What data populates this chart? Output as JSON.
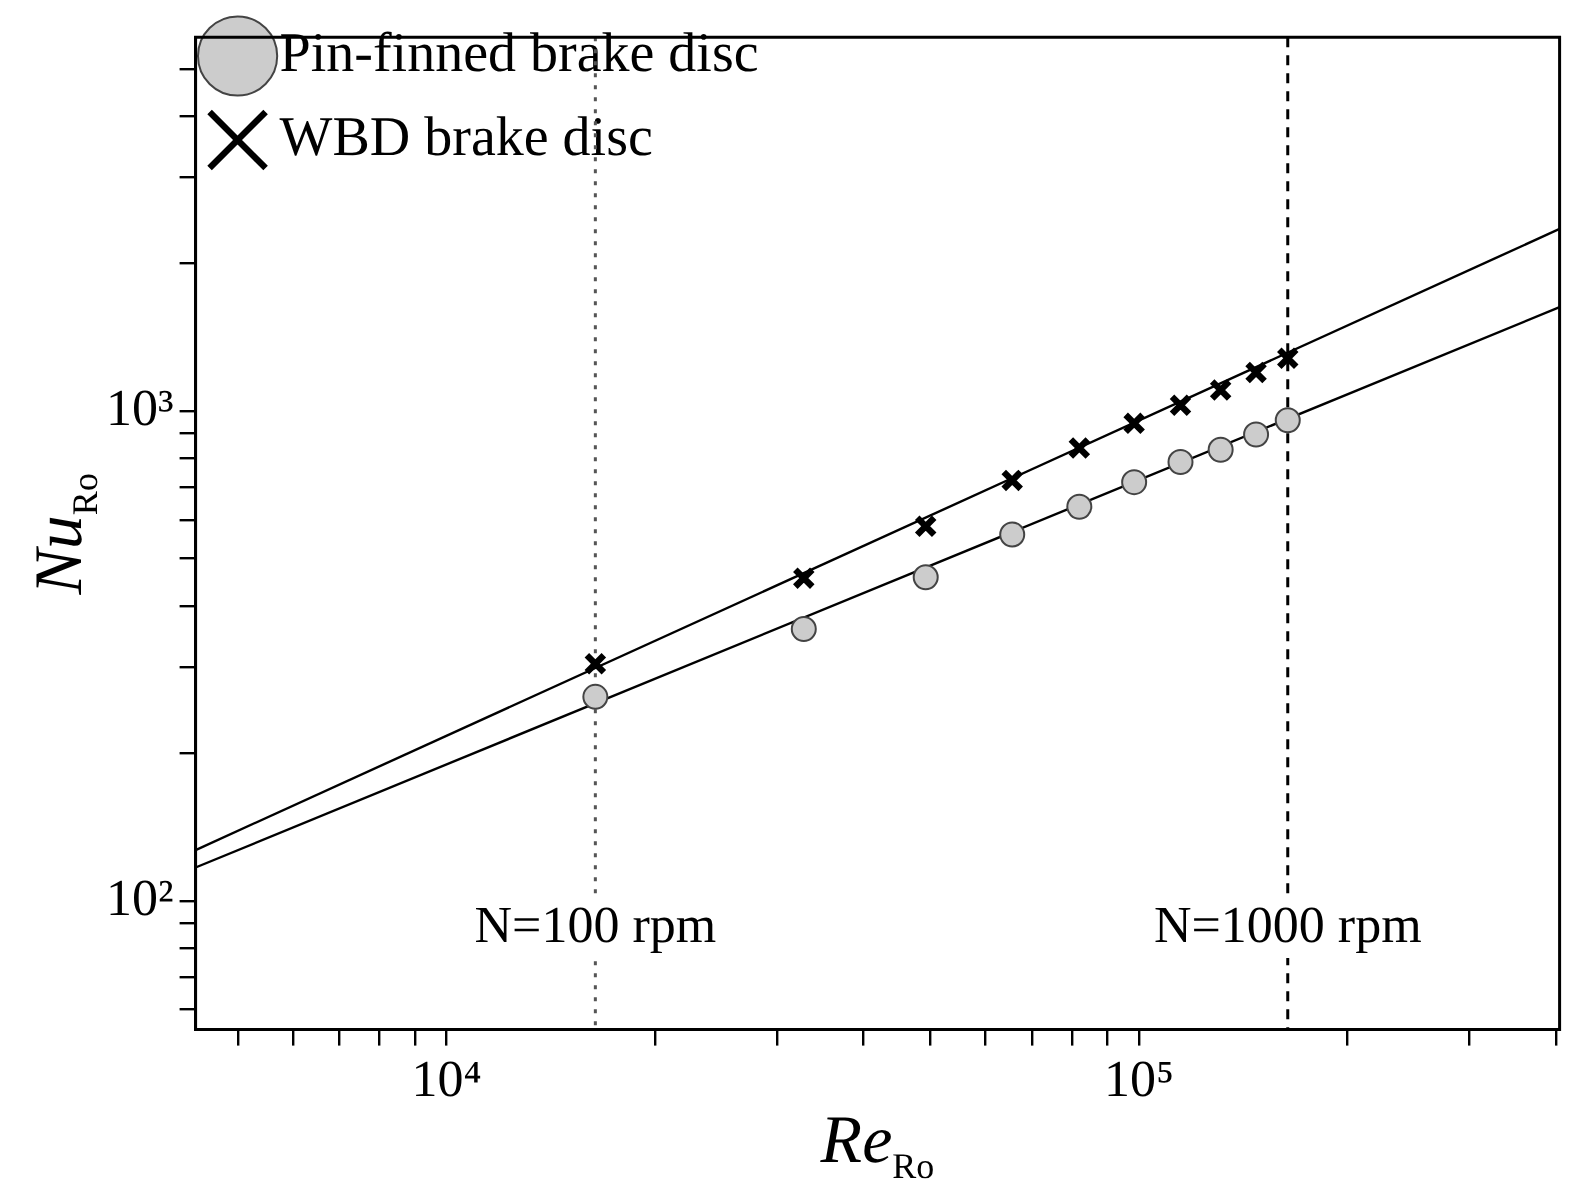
{
  "chart_data": {
    "type": "scatter",
    "log": "xy",
    "xlabel": "Re$_{Ro}$",
    "ylabel": "Nu$_{Ro}$",
    "legend": "top left",
    "grid": false,
    "xlim": [
      4340,
      405000
    ],
    "ylim": [
      54.6,
      5800
    ],
    "xticks": [
      {
        "value": 5000,
        "label": null
      },
      {
        "value": 6000,
        "label": null
      },
      {
        "value": 7000,
        "label": null
      },
      {
        "value": 8000,
        "label": null
      },
      {
        "value": 9000,
        "label": null
      },
      {
        "value": 10000,
        "label": "10⁴"
      },
      {
        "value": 20000,
        "label": null
      },
      {
        "value": 30000,
        "label": null
      },
      {
        "value": 40000,
        "label": null
      },
      {
        "value": 50000,
        "label": null
      },
      {
        "value": 60000,
        "label": null
      },
      {
        "value": 70000,
        "label": null
      },
      {
        "value": 80000,
        "label": null
      },
      {
        "value": 90000,
        "label": null
      },
      {
        "value": 100000,
        "label": "10⁵"
      },
      {
        "value": 200000,
        "label": null
      },
      {
        "value": 300000,
        "label": null
      },
      {
        "value": 400000,
        "label": null
      }
    ],
    "yticks": [
      {
        "value": 60,
        "label": null
      },
      {
        "value": 70,
        "label": null
      },
      {
        "value": 80,
        "label": null
      },
      {
        "value": 90,
        "label": null
      },
      {
        "value": 100,
        "label": "10²"
      },
      {
        "value": 200,
        "label": null
      },
      {
        "value": 300,
        "label": null
      },
      {
        "value": 400,
        "label": null
      },
      {
        "value": 500,
        "label": null
      },
      {
        "value": 600,
        "label": null
      },
      {
        "value": 700,
        "label": null
      },
      {
        "value": 800,
        "label": null
      },
      {
        "value": 900,
        "label": null
      },
      {
        "value": 1000,
        "label": "10³"
      },
      {
        "value": 2000,
        "label": null
      },
      {
        "value": 3000,
        "label": null
      },
      {
        "value": 4000,
        "label": null
      },
      {
        "value": 5000,
        "label": null
      }
    ],
    "ref_lines": [
      {
        "axis": "x",
        "value": 16400,
        "color": "#555555",
        "line_style": "dotted"
      },
      {
        "axis": "x",
        "value": 164000,
        "color": "#000000",
        "line_style": "dashed"
      }
    ],
    "annotations": [
      {
        "text": "N=100 rpm",
        "x": 16400,
        "y": 88
      },
      {
        "text": "N=1000 rpm",
        "x": 164000,
        "y": 88
      }
    ],
    "series": [
      {
        "type": "line",
        "marker": "none",
        "color": "#000000",
        "x": [
          4340,
          405000
        ],
        "values": [
          117,
          1630
        ]
      },
      {
        "type": "line",
        "marker": "none",
        "color": "#000000",
        "x": [
          4340,
          405000
        ],
        "values": [
          127,
          2355
        ]
      },
      {
        "name": "Pin-finned brake disc",
        "type": "scatter",
        "marker": "circle",
        "color": "#cccccc",
        "x": [
          16400,
          32800,
          49200,
          65600,
          82000,
          98400,
          114800,
          131200,
          147600,
          164000
        ],
        "values": [
          261,
          359,
          458,
          560,
          638,
          716,
          787,
          834,
          896,
          958
        ]
      },
      {
        "name": "WBD brake disc",
        "type": "scatter",
        "marker": "cross",
        "color": "#000000",
        "x": [
          16400,
          32800,
          49200,
          65600,
          82000,
          98400,
          114800,
          131200,
          147600,
          164000
        ],
        "values": [
          305,
          456,
          582,
          722,
          841,
          944,
          1028,
          1104,
          1199,
          1282
        ]
      }
    ]
  }
}
